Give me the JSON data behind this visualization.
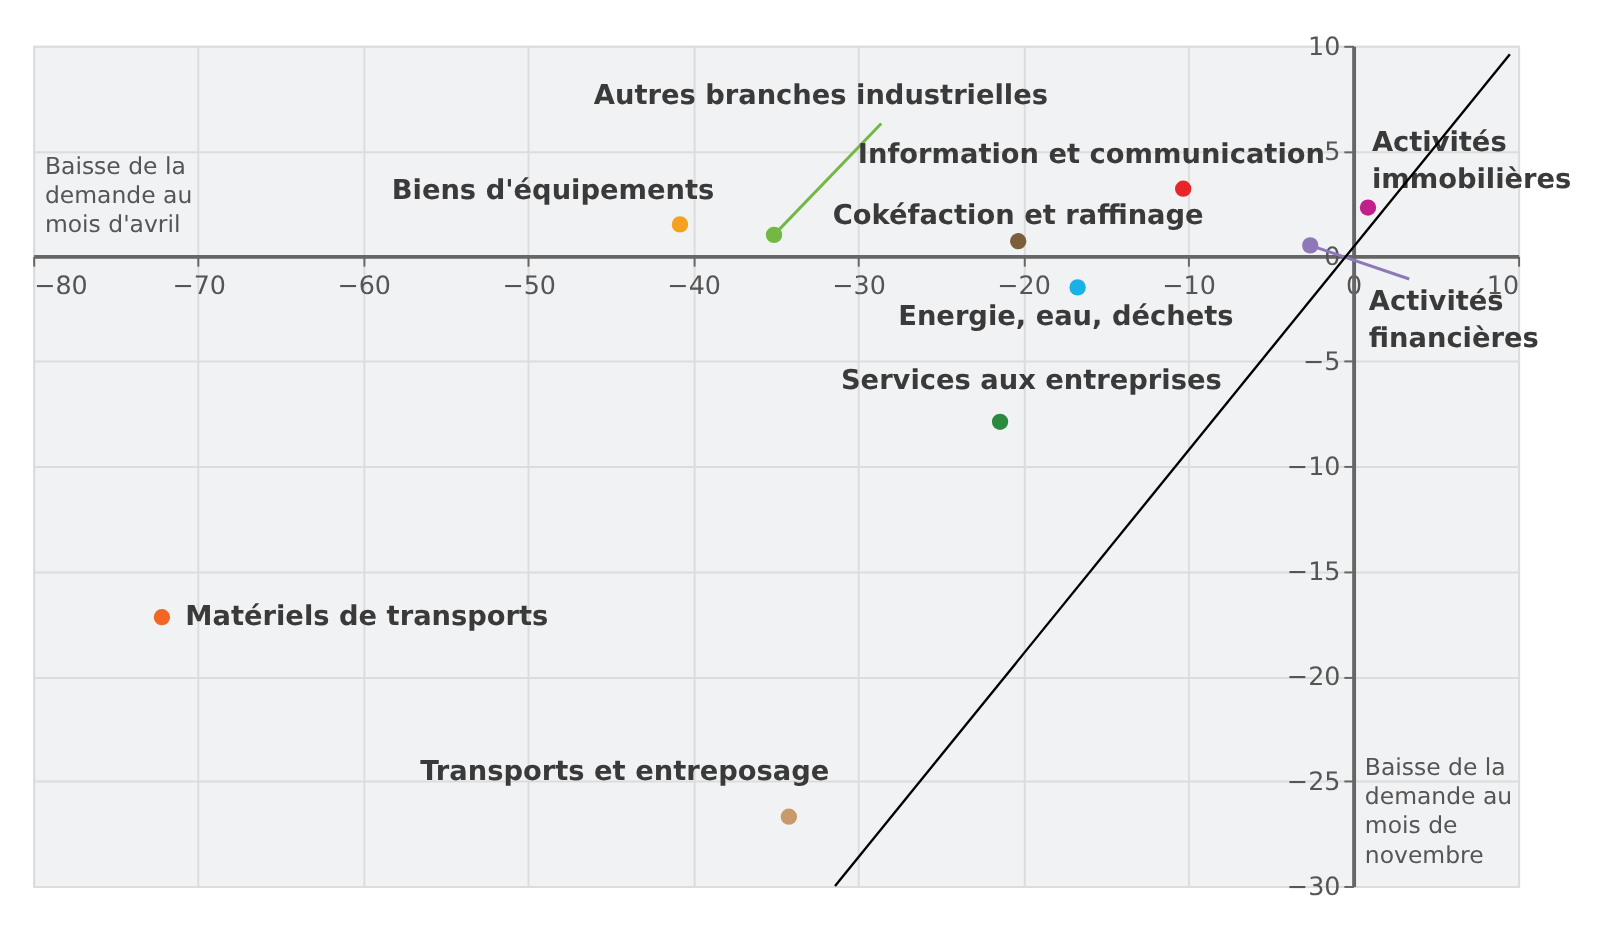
{
  "chart_data": {
    "type": "scatter",
    "xlabel": "Baisse de la demande au mois d'avril",
    "ylabel": "Baisse de la demande au mois de novembre",
    "xlim": [
      -80,
      10
    ],
    "ylim": [
      -30,
      10
    ],
    "xticks": [
      -80,
      -70,
      -60,
      -50,
      -40,
      -30,
      -20,
      -10,
      0,
      10
    ],
    "yticks": [
      -30,
      -25,
      -20,
      -15,
      -10,
      -5,
      0,
      5,
      10
    ],
    "grid": true,
    "marker": "circle",
    "series": [
      {
        "name": "Biens d'équipements",
        "color": "#f5a11f",
        "x": [
          -40.8
        ],
        "values": [
          1.5
        ]
      },
      {
        "name": "Autres branches industrielles",
        "color": "#72b843",
        "x": [
          -35.1
        ],
        "values": [
          1.0
        ]
      },
      {
        "name": "Information et communication",
        "color": "#e8262a",
        "x": [
          -10.3
        ],
        "values": [
          3.2
        ]
      },
      {
        "name": "Cokéfaction et raffinage",
        "color": "#7b5e3a",
        "x": [
          -20.3
        ],
        "values": [
          0.7
        ]
      },
      {
        "name": "Energie, eau, déchets",
        "color": "#1ab0e8",
        "x": [
          -16.7
        ],
        "values": [
          -1.5
        ]
      },
      {
        "name": "Services aux entreprises",
        "color": "#2a8a3e",
        "x": [
          -21.4
        ],
        "values": [
          -7.9
        ]
      },
      {
        "name": "Activités immobilières",
        "color": "#c0208a",
        "x": [
          0.9
        ],
        "values": [
          2.3
        ]
      },
      {
        "name": "Activités financières",
        "color": "#8f78b8",
        "x": [
          -2.6
        ],
        "values": [
          0.5
        ]
      },
      {
        "name": "Matériels de transports",
        "color": "#f26522",
        "x": [
          -72.2
        ],
        "values": [
          -17.2
        ]
      },
      {
        "name": "Transports et entreposage",
        "color": "#c89a6a",
        "x": [
          -34.2
        ],
        "values": [
          -26.7
        ]
      },
      {
        "type": "line",
        "marker": "none",
        "color": "#000000",
        "x": [
          -31.4,
          9.5
        ],
        "values": [
          -30,
          9.6
        ]
      }
    ]
  }
}
